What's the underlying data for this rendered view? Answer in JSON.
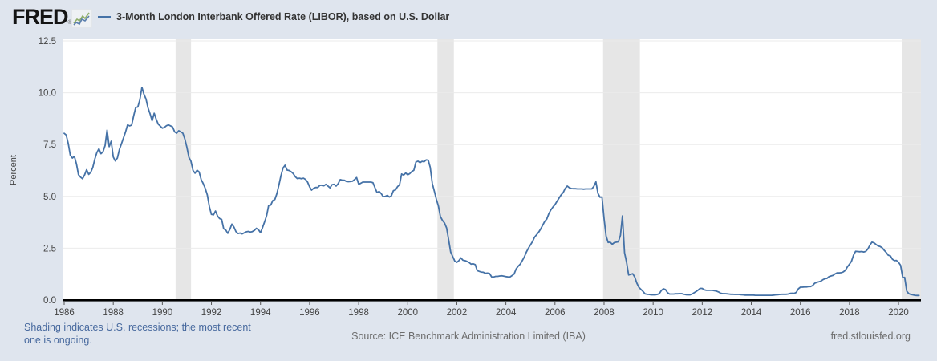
{
  "header": {
    "logo_text": "FRED",
    "logo_registered": "®",
    "legend_label": "3-Month London Interbank Offered Rate (LIBOR), based on U.S. Dollar"
  },
  "footer": {
    "note": "Shading indicates U.S. recessions; the most recent one is ongoing.",
    "source": "Source: ICE Benchmark Administration Limited (IBA)",
    "site": "fred.stlouisfed.org"
  },
  "colors": {
    "page_bg": "#dfe5ee",
    "plot_bg": "#ffffff",
    "line": "#4572a7",
    "recession_band": "#e6e6e6",
    "gridline": "#ebebeb",
    "axis": "#000000",
    "tick_text": "#444444",
    "title_text": "#333333",
    "note_text": "#47699e",
    "source_text": "#6d6d6d",
    "icon_green": "#8fae6b",
    "icon_blue": "#5b7fae"
  },
  "chart_data": {
    "type": "line",
    "title": "3-Month London Interbank Offered Rate (LIBOR), based on U.S. Dollar",
    "ylabel": "Percent",
    "ylim": [
      0,
      12.5
    ],
    "yticks": [
      0,
      2.5,
      5,
      7.5,
      10,
      12.5
    ],
    "ytick_labels": [
      "0.0",
      "2.5",
      "5.0",
      "7.5",
      "10.0",
      "12.5"
    ],
    "x_tick_years": [
      1986,
      1988,
      1990,
      1992,
      1994,
      1996,
      1998,
      2000,
      2002,
      2004,
      2006,
      2008,
      2010,
      2012,
      2014,
      2016,
      2018,
      2020
    ],
    "x_tick_labels": [
      "1986",
      "1988",
      "1990",
      "1992",
      "1994",
      "1996",
      "1998",
      "2000",
      "2002",
      "2004",
      "2006",
      "2008",
      "2010",
      "2012",
      "2014",
      "2016",
      "2018",
      "2020"
    ],
    "x_start_year": 1986,
    "frequency": "monthly",
    "grid": true,
    "legend_position": "top",
    "recessions": [
      [
        1990.54,
        1991.17
      ],
      [
        2001.21,
        2001.88
      ],
      [
        2007.96,
        2009.46
      ],
      [
        2020.13,
        2021.0
      ]
    ],
    "recessions_note": "ongoing at end of sample",
    "values": [
      8.04,
      7.96,
      7.55,
      6.99,
      6.85,
      6.93,
      6.57,
      6.05,
      5.93,
      5.85,
      6.04,
      6.29,
      6.06,
      6.16,
      6.4,
      6.8,
      7.12,
      7.3,
      7.06,
      7.15,
      7.45,
      8.2,
      7.4,
      7.66,
      6.9,
      6.71,
      6.85,
      7.26,
      7.54,
      7.82,
      8.11,
      8.45,
      8.4,
      8.44,
      8.9,
      9.29,
      9.31,
      9.66,
      10.26,
      9.93,
      9.7,
      9.27,
      8.98,
      8.65,
      9.01,
      8.72,
      8.48,
      8.39,
      8.29,
      8.33,
      8.41,
      8.45,
      8.4,
      8.35,
      8.11,
      8.05,
      8.17,
      8.11,
      8.05,
      7.77,
      7.38,
      6.88,
      6.7,
      6.25,
      6.12,
      6.26,
      6.18,
      5.81,
      5.62,
      5.38,
      5.07,
      4.5,
      4.13,
      4.11,
      4.29,
      4.05,
      3.93,
      3.89,
      3.44,
      3.38,
      3.22,
      3.41,
      3.66,
      3.52,
      3.3,
      3.21,
      3.23,
      3.19,
      3.24,
      3.29,
      3.31,
      3.28,
      3.3,
      3.36,
      3.46,
      3.39,
      3.25,
      3.5,
      3.77,
      4.08,
      4.57,
      4.58,
      4.8,
      4.85,
      5.13,
      5.55,
      6.0,
      6.37,
      6.5,
      6.27,
      6.25,
      6.19,
      6.1,
      5.95,
      5.86,
      5.88,
      5.85,
      5.88,
      5.82,
      5.69,
      5.46,
      5.3,
      5.39,
      5.43,
      5.43,
      5.53,
      5.54,
      5.51,
      5.58,
      5.5,
      5.41,
      5.56,
      5.58,
      5.5,
      5.62,
      5.81,
      5.78,
      5.78,
      5.72,
      5.71,
      5.72,
      5.73,
      5.81,
      5.91,
      5.59,
      5.63,
      5.69,
      5.69,
      5.69,
      5.69,
      5.69,
      5.66,
      5.41,
      5.18,
      5.24,
      5.14,
      4.99,
      5.0,
      5.05,
      4.97,
      5.03,
      5.28,
      5.31,
      5.47,
      5.57,
      6.08,
      6.03,
      6.13,
      6.04,
      6.1,
      6.2,
      6.26,
      6.66,
      6.7,
      6.63,
      6.69,
      6.67,
      6.76,
      6.75,
      6.4,
      5.62,
      5.25,
      4.87,
      4.53,
      4.02,
      3.84,
      3.72,
      3.48,
      2.92,
      2.31,
      2.1,
      1.88,
      1.82,
      1.9,
      2.03,
      1.92,
      1.9,
      1.86,
      1.81,
      1.73,
      1.75,
      1.71,
      1.42,
      1.38,
      1.35,
      1.34,
      1.29,
      1.3,
      1.28,
      1.12,
      1.11,
      1.14,
      1.14,
      1.16,
      1.17,
      1.15,
      1.13,
      1.12,
      1.11,
      1.18,
      1.25,
      1.5,
      1.63,
      1.73,
      1.9,
      2.08,
      2.31,
      2.5,
      2.66,
      2.82,
      3.03,
      3.15,
      3.27,
      3.43,
      3.61,
      3.8,
      3.91,
      4.17,
      4.35,
      4.49,
      4.6,
      4.76,
      4.92,
      5.07,
      5.18,
      5.38,
      5.5,
      5.42,
      5.38,
      5.37,
      5.37,
      5.36,
      5.36,
      5.36,
      5.35,
      5.36,
      5.36,
      5.36,
      5.36,
      5.48,
      5.7,
      5.15,
      4.96,
      4.97,
      3.92,
      3.09,
      2.78,
      2.79,
      2.69,
      2.77,
      2.79,
      2.81,
      3.12,
      4.06,
      2.28,
      1.83,
      1.21,
      1.24,
      1.27,
      1.11,
      0.82,
      0.62,
      0.52,
      0.42,
      0.3,
      0.28,
      0.27,
      0.25,
      0.25,
      0.25,
      0.27,
      0.31,
      0.46,
      0.54,
      0.51,
      0.36,
      0.29,
      0.29,
      0.29,
      0.3,
      0.3,
      0.31,
      0.31,
      0.28,
      0.26,
      0.25,
      0.25,
      0.29,
      0.35,
      0.41,
      0.48,
      0.56,
      0.56,
      0.49,
      0.47,
      0.47,
      0.47,
      0.47,
      0.45,
      0.43,
      0.39,
      0.33,
      0.31,
      0.31,
      0.3,
      0.29,
      0.28,
      0.28,
      0.27,
      0.27,
      0.27,
      0.26,
      0.25,
      0.24,
      0.24,
      0.24,
      0.24,
      0.24,
      0.23,
      0.23,
      0.23,
      0.23,
      0.23,
      0.23,
      0.23,
      0.23,
      0.23,
      0.24,
      0.25,
      0.26,
      0.27,
      0.28,
      0.28,
      0.28,
      0.29,
      0.32,
      0.33,
      0.32,
      0.37,
      0.54,
      0.62,
      0.62,
      0.63,
      0.63,
      0.65,
      0.65,
      0.7,
      0.81,
      0.85,
      0.88,
      0.91,
      0.98,
      1.03,
      1.04,
      1.13,
      1.16,
      1.19,
      1.26,
      1.31,
      1.31,
      1.32,
      1.36,
      1.43,
      1.6,
      1.73,
      1.87,
      2.17,
      2.35,
      2.34,
      2.33,
      2.34,
      2.32,
      2.35,
      2.46,
      2.65,
      2.79,
      2.76,
      2.68,
      2.61,
      2.58,
      2.52,
      2.4,
      2.29,
      2.16,
      2.13,
      1.97,
      1.9,
      1.91,
      1.82,
      1.68,
      1.1,
      1.09,
      0.43,
      0.31,
      0.27,
      0.25,
      0.23,
      0.22,
      0.22
    ]
  }
}
